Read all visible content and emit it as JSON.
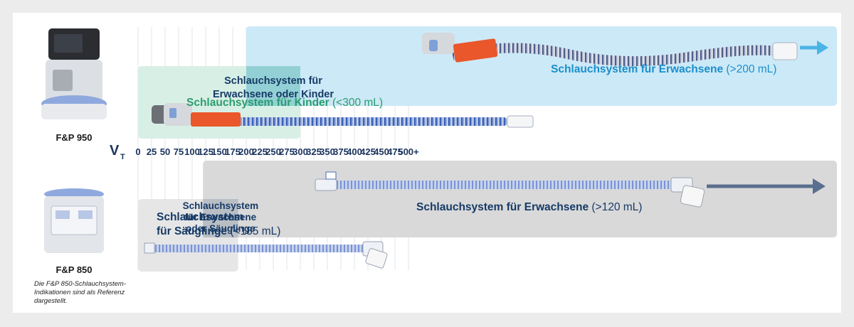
{
  "chart_data": {
    "type": "range",
    "axis_label": "V",
    "axis_subscript": "T",
    "ticks": [
      "0",
      "25",
      "50",
      "75",
      "100",
      "125",
      "150",
      "175",
      "200",
      "225",
      "250",
      "275",
      "300",
      "325",
      "350",
      "375",
      "400",
      "425",
      "450",
      "475",
      "500+"
    ],
    "xlim": [
      0,
      500
    ],
    "bands": [
      {
        "id": "child",
        "row": "F&P 950",
        "from": 0,
        "to": 300,
        "label": "Schlauchsystem für Kinder",
        "range": "(<300 mL)",
        "color": "#d8efe6"
      },
      {
        "id": "adult950",
        "row": "F&P 950",
        "from": 200,
        "to": 500,
        "open_end": true,
        "label": "Schlauchsystem für Erwachsene",
        "range": "(>200 mL)",
        "color": "#cce9f7"
      },
      {
        "id": "infant",
        "row": "F&P 850",
        "from": 0,
        "to": 185,
        "label_lines": [
          "Schlauchsystem",
          "für Säuglinge"
        ],
        "range": "(<185 mL)",
        "color": "#e6e6e6"
      },
      {
        "id": "adult850",
        "row": "F&P 850",
        "from": 120,
        "to": 500,
        "open_end": true,
        "label": "Schlauchsystem für Erwachsene",
        "range": "(>120 mL)",
        "color": "#d9d9d9"
      }
    ],
    "overlaps": [
      {
        "row": "F&P 950",
        "from": 200,
        "to": 300,
        "label_lines": [
          "Schlauchsystem für",
          "Erwachsene oder Kinder"
        ]
      },
      {
        "row": "F&P 850",
        "from": 120,
        "to": 185,
        "label_lines": [
          "Schlauchsystem",
          "für Erwachsene",
          "oder Säuglinge"
        ]
      }
    ]
  },
  "devices": {
    "top": "F&P 950",
    "bottom": "F&P 850"
  },
  "note": [
    "Die F&P 850-Schlauchsystem-",
    "Indikationen sind als Referenz",
    "dargestellt."
  ],
  "colors": {
    "axis_navy": "#1c355e",
    "green_text": "#2b9d6e",
    "blue_text": "#1b8fcb",
    "navy_text": "#163a66",
    "arrow_blue": "#4bb4e6",
    "arrow_navy": "#5a6e8f"
  }
}
